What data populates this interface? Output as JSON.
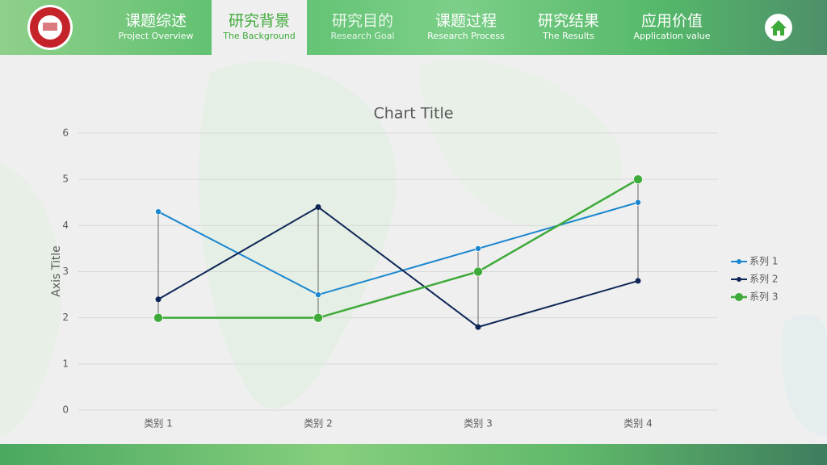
{
  "nav": {
    "items": [
      {
        "title": "课题综述",
        "subtitle": "Project Overview"
      },
      {
        "title": "研究背景",
        "subtitle": "The Background"
      },
      {
        "title": "研究目的",
        "subtitle": "Research Goal"
      },
      {
        "title": "课题过程",
        "subtitle": "Research Process"
      },
      {
        "title": "研究结果",
        "subtitle": "The Results"
      },
      {
        "title": "应用价值",
        "subtitle": "Application value"
      }
    ]
  },
  "chart_data": {
    "type": "line",
    "title": "Chart Title",
    "y_label": "Axis Title",
    "categories": [
      "类别 1",
      "类别 2",
      "类别 3",
      "类别 4"
    ],
    "series": [
      {
        "name": "系列 1",
        "color": "#1a86cf",
        "values": [
          4.3,
          2.5,
          3.5,
          4.5
        ]
      },
      {
        "name": "系列 2",
        "color": "#0f2757",
        "values": [
          2.4,
          4.4,
          1.8,
          2.8
        ]
      },
      {
        "name": "系列 3",
        "color": "#3eaa3a",
        "values": [
          2,
          2,
          3,
          5
        ]
      }
    ],
    "ylim": [
      0,
      6
    ],
    "yticks": [
      0,
      1,
      2,
      3,
      4,
      5,
      6
    ],
    "grid": true,
    "high_low_lines": true,
    "legend": "right"
  }
}
